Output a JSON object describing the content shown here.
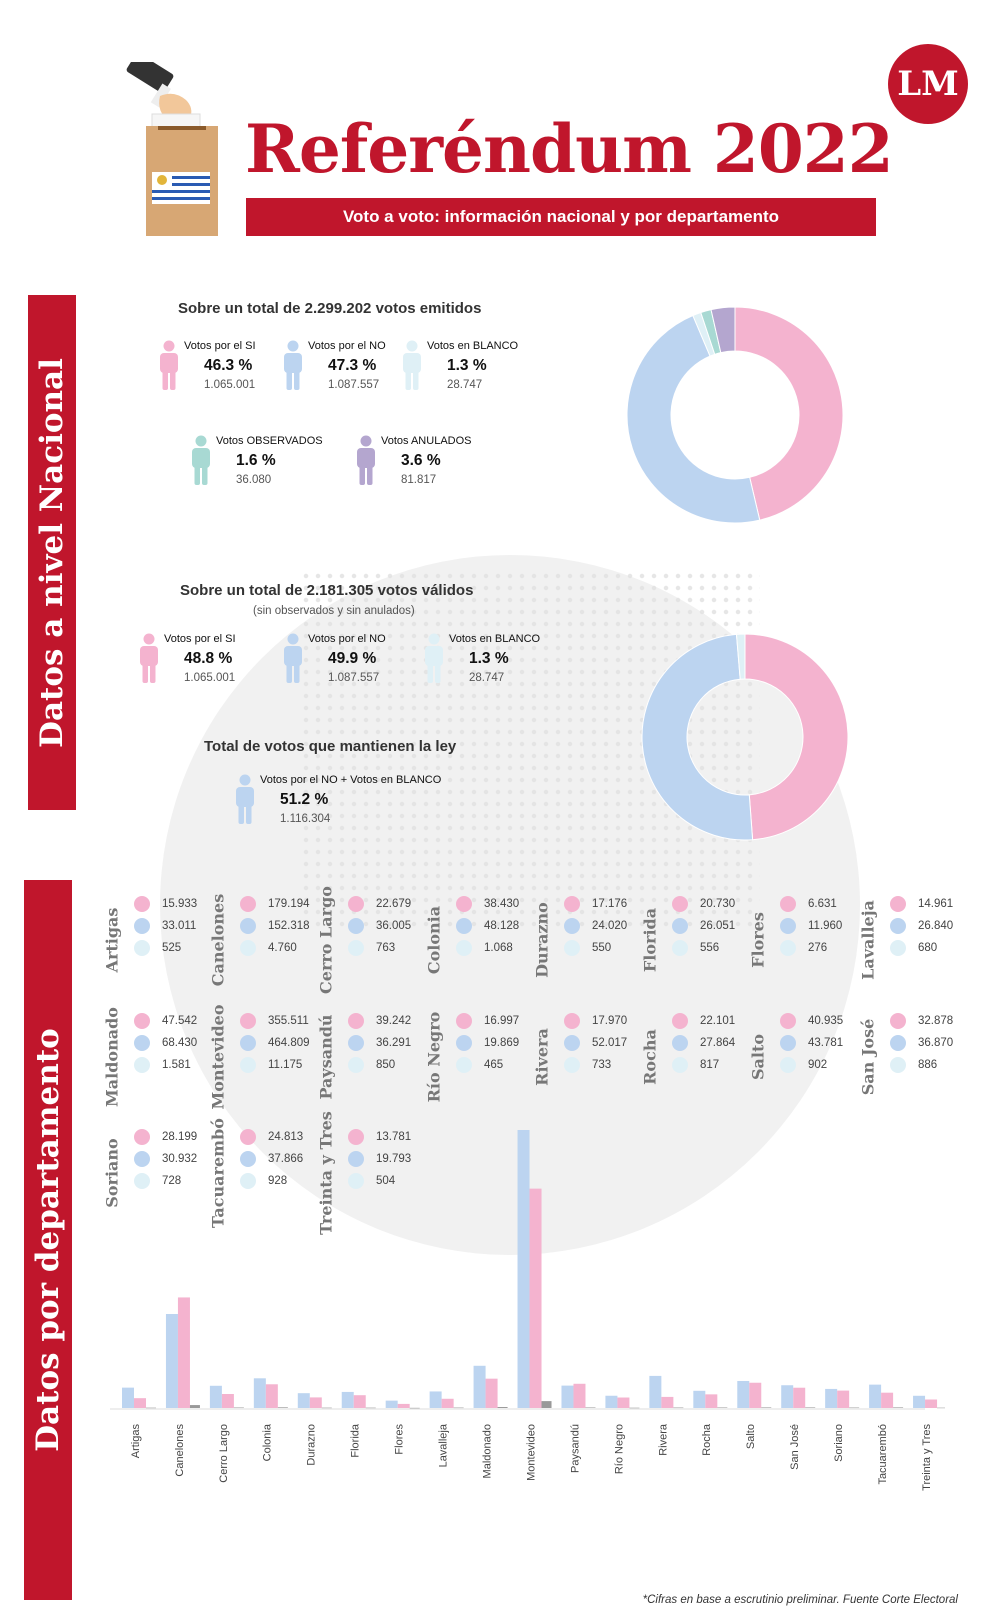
{
  "header": {
    "title": "Referéndum 2022",
    "subtitle": "Voto a voto: información nacional y por departamento",
    "logo_text": "LM"
  },
  "colors": {
    "accent": "#c0162c",
    "si": "#f4b3cf",
    "no": "#bcd4f0",
    "blanco": "#dff0f6",
    "observados": "#a8d9d3",
    "anulados": "#b4a6cf",
    "blanco_bar": "#999999"
  },
  "nacional": {
    "side_label": "Datos a nivel Nacional",
    "emitidos_header": "Sobre un total de 2.299.202 votos emitidos",
    "emitidos": [
      {
        "label": "Votos por el SI",
        "pct": "46.3 %",
        "count": "1.065.001",
        "icon": "person-icon",
        "color": "#f4b3cf"
      },
      {
        "label": "Votos por el NO",
        "pct": "47.3 %",
        "count": "1.087.557",
        "icon": "person-icon",
        "color": "#bcd4f0"
      },
      {
        "label": "Votos en BLANCO",
        "pct": "1.3 %",
        "count": "28.747",
        "icon": "person-icon",
        "color": "#dff0f6"
      },
      {
        "label": "Votos OBSERVADOS",
        "pct": "1.6 %",
        "count": "36.080",
        "icon": "person-icon",
        "color": "#a8d9d3"
      },
      {
        "label": "Votos ANULADOS",
        "pct": "3.6 %",
        "count": "81.817",
        "icon": "person-icon",
        "color": "#b4a6cf"
      }
    ],
    "validos_header": "Sobre un total de 2.181.305 votos válidos",
    "validos_note": "(sin observados y sin anulados)",
    "validos": [
      {
        "label": "Votos por el SI",
        "pct": "48.8 %",
        "count": "1.065.001",
        "icon": "person-icon",
        "color": "#f4b3cf"
      },
      {
        "label": "Votos por el NO",
        "pct": "49.9 %",
        "count": "1.087.557",
        "icon": "person-icon",
        "color": "#bcd4f0"
      },
      {
        "label": "Votos en BLANCO",
        "pct": "1.3 %",
        "count": "28.747",
        "icon": "person-icon",
        "color": "#dff0f6"
      }
    ],
    "mantienen_header": "Total de votos que mantienen la ley",
    "mantienen": {
      "label": "Votos por el NO + Votos en BLANCO",
      "pct": "51.2 %",
      "count": "1.116.304",
      "icon": "person-icon",
      "color": "#bcd4f0"
    }
  },
  "departamentos": {
    "side_label": "Datos por departamento",
    "items": [
      {
        "name": "Artigas",
        "si": "15.933",
        "no": "33.011",
        "blanco": "525"
      },
      {
        "name": "Canelones",
        "si": "179.194",
        "no": "152.318",
        "blanco": "4.760"
      },
      {
        "name": "Cerro Largo",
        "si": "22.679",
        "no": "36.005",
        "blanco": "763"
      },
      {
        "name": "Colonia",
        "si": "38.430",
        "no": "48.128",
        "blanco": "1.068"
      },
      {
        "name": "Durazno",
        "si": "17.176",
        "no": "24.020",
        "blanco": "550"
      },
      {
        "name": "Florida",
        "si": "20.730",
        "no": "26.051",
        "blanco": "556"
      },
      {
        "name": "Flores",
        "si": "6.631",
        "no": "11.960",
        "blanco": "276"
      },
      {
        "name": "Lavalleja",
        "si": "14.961",
        "no": "26.840",
        "blanco": "680"
      },
      {
        "name": "Maldonado",
        "si": "47.542",
        "no": "68.430",
        "blanco": "1.581"
      },
      {
        "name": "Montevideo",
        "si": "355.511",
        "no": "464.809",
        "blanco": "11.175"
      },
      {
        "name": "Paysandú",
        "si": "39.242",
        "no": "36.291",
        "blanco": "850"
      },
      {
        "name": "Río Negro",
        "si": "16.997",
        "no": "19.869",
        "blanco": "465"
      },
      {
        "name": "Rivera",
        "si": "17.970",
        "no": "52.017",
        "blanco": "733"
      },
      {
        "name": "Rocha",
        "si": "22.101",
        "no": "27.864",
        "blanco": "817"
      },
      {
        "name": "Salto",
        "si": "40.935",
        "no": "43.781",
        "blanco": "902"
      },
      {
        "name": "San José",
        "si": "32.878",
        "no": "36.870",
        "blanco": "886"
      },
      {
        "name": "Soriano",
        "si": "28.199",
        "no": "30.932",
        "blanco": "728"
      },
      {
        "name": "Tacuarembó",
        "si": "24.813",
        "no": "37.866",
        "blanco": "928"
      },
      {
        "name": "Treinta y Tres",
        "si": "13.781",
        "no": "19.793",
        "blanco": "504"
      }
    ]
  },
  "chart_data": [
    {
      "type": "pie",
      "labels": [
        "Votos por el SI",
        "Votos por el NO",
        "Votos en BLANCO",
        "Votos OBSERVADOS",
        "Votos ANULADOS"
      ],
      "values": [
        1065001,
        1087557,
        28747,
        36080,
        81817
      ],
      "colors": [
        "#f4b3cf",
        "#bcd4f0",
        "#dff0f6",
        "#a8d9d3",
        "#b4a6cf"
      ],
      "donut": true
    },
    {
      "type": "pie",
      "labels": [
        "Votos por el SI",
        "Votos por el NO",
        "Votos en BLANCO"
      ],
      "values": [
        1065001,
        1087557,
        28747
      ],
      "colors": [
        "#f4b3cf",
        "#bcd4f0",
        "#dff0f6"
      ],
      "donut": true
    },
    {
      "type": "bar",
      "categories": [
        "Artigas",
        "Canelones",
        "Cerro Largo",
        "Colonia",
        "Durazno",
        "Florida",
        "Flores",
        "Lavalleja",
        "Maldonado",
        "Montevideo",
        "Paysandú",
        "Río Negro",
        "Rivera",
        "Rocha",
        "Salto",
        "San José",
        "Soriano",
        "Tacuarembó",
        "Treinta y Tres"
      ],
      "series": [
        {
          "color": "#bcd4f0",
          "values": [
            33011,
            152318,
            36005,
            48128,
            24020,
            26051,
            11960,
            26840,
            68430,
            464809,
            36291,
            19869,
            52017,
            27864,
            43781,
            36870,
            30932,
            37866,
            19793
          ]
        },
        {
          "color": "#f4b3cf",
          "values": [
            15933,
            179194,
            22679,
            38430,
            17176,
            20730,
            6631,
            14961,
            47542,
            355511,
            39242,
            16997,
            17970,
            22101,
            40935,
            32878,
            28199,
            24813,
            13781
          ]
        },
        {
          "color": "#999999",
          "values": [
            525,
            4760,
            763,
            1068,
            550,
            556,
            276,
            680,
            1581,
            11175,
            850,
            465,
            733,
            817,
            902,
            886,
            728,
            928,
            504
          ]
        }
      ],
      "ylim": [
        0,
        470000
      ]
    }
  ],
  "footnote": "*Cifras en base a escrutinio preliminar. Fuente Corte Electoral"
}
